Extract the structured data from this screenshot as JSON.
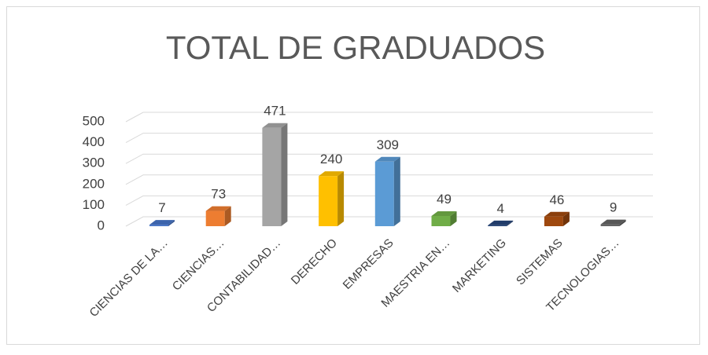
{
  "chart_data": {
    "type": "bar3d",
    "title": "TOTAL DE GRADUADOS",
    "categories": [
      "CIENCIAS DE LA…",
      "CIENCIAS…",
      "CONTABILIDAD…",
      "DERECHO",
      "EMPRESAS",
      "MAESTRIA EN…",
      "MARKETING",
      "SISTEMAS",
      "TECNOLOGIAS…"
    ],
    "values": [
      7,
      73,
      471,
      240,
      309,
      49,
      4,
      46,
      9
    ],
    "colors": [
      "#4472c4",
      "#ed7d31",
      "#a5a5a5",
      "#ffc000",
      "#5b9bd5",
      "#70ad47",
      "#264478",
      "#9e480e",
      "#636363"
    ],
    "ylim": [
      0,
      500
    ],
    "yticks": [
      0,
      100,
      200,
      300,
      400,
      500
    ],
    "grid": true
  }
}
